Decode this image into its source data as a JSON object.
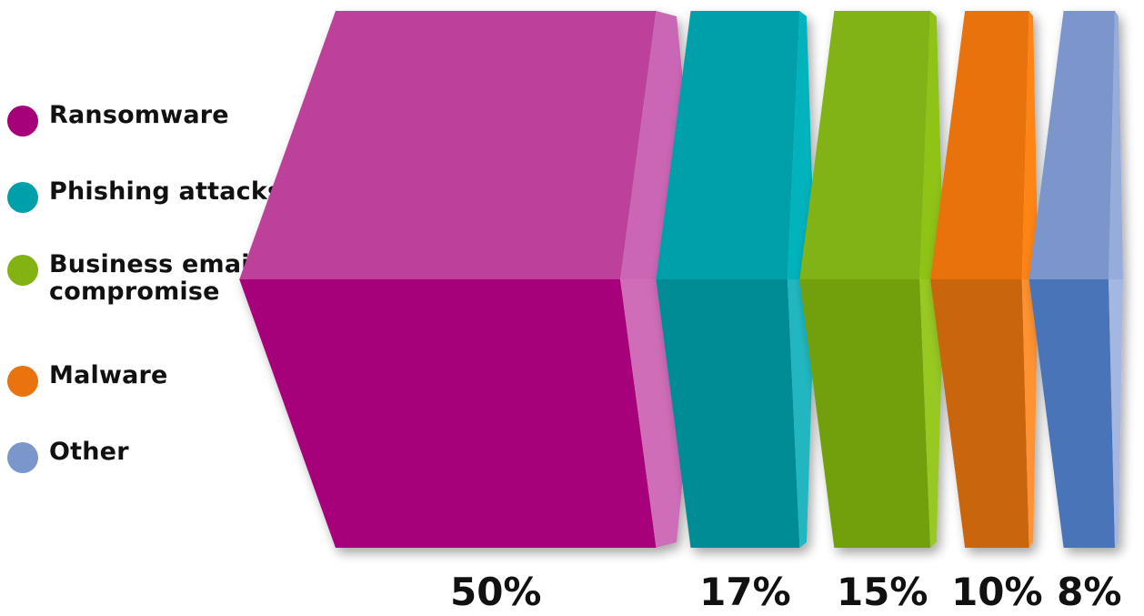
{
  "chart_data": {
    "type": "bar",
    "categories": [
      "Ransomware",
      "Phishing attacks",
      "Business email compromise",
      "Malware",
      "Other"
    ],
    "values": [
      50,
      17,
      15,
      10,
      8
    ],
    "value_labels": [
      "50%",
      "17%",
      "15%",
      "10%",
      "8%"
    ],
    "title": "",
    "legend_position": "left",
    "colors": [
      {
        "front": "#bd3f9b",
        "bottom": "#a6007a",
        "side": "#cb66b4",
        "lightside": "#cf6db8"
      },
      {
        "front": "#00a0aa",
        "bottom": "#008c94",
        "side": "#00b3bd",
        "lightside": "#22b7c0"
      },
      {
        "front": "#82b312",
        "bottom": "#72a011",
        "side": "#8fc316",
        "lightside": "#97c922"
      },
      {
        "front": "#e8730f",
        "bottom": "#c9650d",
        "side": "#ff8412",
        "lightside": "#ff9230"
      },
      {
        "front": "#7b96cb",
        "bottom": "#4a75b8",
        "side": "#96acdb",
        "lightside": "#a3b7e0"
      }
    ]
  },
  "legend": {
    "items": [
      {
        "label": "Ransomware",
        "color": "#a6007a"
      },
      {
        "label": "Phishing attacks",
        "color": "#00a0aa"
      },
      {
        "label": "Business email\ncompromise",
        "color": "#82b312"
      },
      {
        "label": "Malware",
        "color": "#e8730f"
      },
      {
        "label": "Other",
        "color": "#7b96cb"
      }
    ]
  }
}
